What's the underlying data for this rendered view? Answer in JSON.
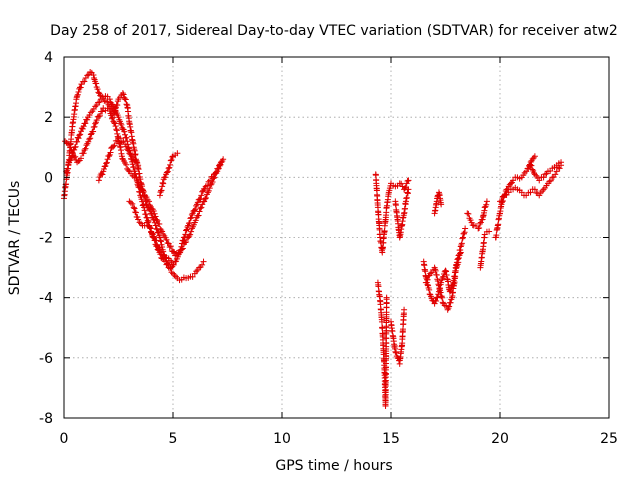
{
  "chart_data": {
    "type": "scatter",
    "title": "Day 258 of 2017, Sidereal Day-to-day VTEC variation (SDTVAR) for receiver atw2",
    "xlabel": "GPS time / hours",
    "ylabel": "SDTVAR / TECUs",
    "xlim": [
      0,
      25
    ],
    "ylim": [
      -8,
      4
    ],
    "xticks": [
      0,
      5,
      10,
      15,
      20,
      25
    ],
    "yticks": [
      4,
      2,
      0,
      -2,
      -4,
      -6,
      -8
    ],
    "xtick_labels": [
      "0",
      "5",
      "10",
      "15",
      "20",
      "25"
    ],
    "ytick_labels": [
      "4",
      "2",
      "0",
      "-2",
      "-4",
      "-6",
      "-8"
    ],
    "grid": true,
    "marker": "+",
    "color": "#e00000",
    "series": [
      {
        "name": "SDTVAR",
        "tracks": [
          {
            "x": [
              0.0,
              0.2,
              0.4,
              0.6,
              0.8,
              1.0,
              1.2,
              1.35,
              1.5,
              1.7,
              2.0,
              2.3,
              2.5,
              2.7,
              2.9,
              3.0,
              3.2,
              3.4,
              3.6,
              3.8,
              4.0,
              4.2,
              4.4,
              4.6,
              4.8,
              5.0,
              5.2,
              5.4,
              5.6,
              5.8,
              6.0,
              6.2,
              6.4
            ],
            "y": [
              -0.7,
              0.4,
              1.8,
              2.7,
              3.1,
              3.3,
              3.5,
              3.4,
              3.0,
              2.7,
              2.5,
              2.1,
              2.6,
              2.8,
              2.4,
              1.8,
              1.0,
              0.3,
              -0.4,
              -0.9,
              -1.2,
              -1.6,
              -2.0,
              -2.6,
              -3.0,
              -3.2,
              -3.35,
              -3.4,
              -3.35,
              -3.3,
              -3.2,
              -3.0,
              -2.8
            ]
          },
          {
            "x": [
              0.1,
              0.3,
              0.5,
              0.7,
              0.9,
              1.1,
              1.3,
              1.5,
              1.7,
              1.9,
              2.1,
              2.3,
              2.5,
              2.7,
              2.9,
              3.1,
              3.3,
              3.5,
              3.7,
              3.9,
              4.1,
              4.3,
              4.5,
              4.7,
              4.9,
              5.1,
              5.3,
              5.5,
              5.7,
              5.9,
              6.1,
              6.3,
              6.5,
              6.7,
              6.9,
              7.1,
              7.3
            ],
            "y": [
              0.2,
              0.6,
              1.0,
              1.4,
              1.7,
              2.0,
              2.2,
              2.4,
              2.6,
              2.7,
              2.6,
              2.3,
              2.0,
              1.6,
              1.2,
              0.6,
              0.0,
              -0.6,
              -1.1,
              -1.6,
              -2.0,
              -2.4,
              -2.7,
              -2.9,
              -3.0,
              -2.8,
              -2.5,
              -2.0,
              -1.6,
              -1.2,
              -0.9,
              -0.6,
              -0.3,
              -0.1,
              0.1,
              0.3,
              0.6
            ]
          },
          {
            "x": [
              0.05,
              0.3,
              0.6,
              0.9,
              1.2,
              1.5,
              1.8,
              2.1,
              2.4,
              2.7,
              3.0,
              3.3,
              3.6,
              3.9,
              4.2,
              4.5,
              4.8,
              5.1,
              5.4,
              5.7,
              6.0,
              6.3,
              6.6,
              6.9,
              7.2
            ],
            "y": [
              1.2,
              1.0,
              0.5,
              0.8,
              1.3,
              1.9,
              2.3,
              2.2,
              1.6,
              0.6,
              0.2,
              0.0,
              -0.5,
              -0.8,
              -1.3,
              -1.8,
              -2.2,
              -2.6,
              -2.4,
              -2.0,
              -1.5,
              -1.0,
              -0.5,
              0.0,
              0.5
            ]
          },
          {
            "x": [
              1.6,
              1.8,
              2.0,
              2.2,
              2.5,
              2.8,
              3.1,
              3.4
            ],
            "y": [
              -0.1,
              0.2,
              0.6,
              1.0,
              1.3,
              1.1,
              0.7,
              0.4
            ]
          },
          {
            "x": [
              3.0,
              3.2,
              3.4,
              3.6,
              3.8,
              4.0,
              4.2,
              4.4,
              4.6,
              4.8,
              5.0
            ],
            "y": [
              -0.8,
              -1.0,
              -1.4,
              -1.6,
              -1.5,
              -1.8,
              -2.1,
              -2.4,
              -2.6,
              -2.7,
              -2.9
            ]
          },
          {
            "x": [
              4.4,
              4.5,
              4.6,
              4.8,
              5.0,
              5.2
            ],
            "y": [
              -0.6,
              -0.3,
              0.0,
              0.3,
              0.7,
              0.8
            ]
          },
          {
            "x": [
              14.3,
              14.4,
              14.5,
              14.6,
              14.7,
              14.8,
              14.9,
              15.0,
              15.2,
              15.4,
              15.6,
              15.8
            ],
            "y": [
              0.1,
              -1.0,
              -2.0,
              -2.5,
              -1.8,
              -1.0,
              -0.5,
              -0.2,
              -0.3,
              -0.2,
              -0.4,
              -0.1
            ]
          },
          {
            "x": [
              14.4,
              14.45,
              14.5,
              14.55,
              14.6,
              14.65,
              14.7,
              14.75,
              14.8
            ],
            "y": [
              -3.5,
              -3.8,
              -4.1,
              -4.5,
              -5.0,
              -5.7,
              -6.4,
              -7.6,
              -4.0
            ]
          },
          {
            "x": [
              15.0,
              15.05,
              15.1,
              15.2,
              15.3,
              15.4,
              15.5,
              15.6
            ],
            "y": [
              -4.8,
              -5.1,
              -5.3,
              -5.8,
              -6.0,
              -6.2,
              -5.6,
              -4.4
            ]
          },
          {
            "x": [
              15.2,
              15.3,
              15.4,
              15.5,
              15.6,
              15.7,
              15.8
            ],
            "y": [
              -0.8,
              -1.4,
              -2.0,
              -1.6,
              -1.2,
              -0.7,
              -0.4
            ]
          },
          {
            "x": [
              16.5,
              16.6,
              16.7,
              16.8,
              16.9,
              17.0,
              17.1,
              17.2,
              17.3,
              17.4,
              17.5,
              17.6,
              17.7,
              17.8,
              17.9,
              18.0,
              18.1,
              18.2,
              18.3,
              18.4
            ],
            "y": [
              -2.8,
              -3.3,
              -3.6,
              -3.9,
              -4.1,
              -4.2,
              -4.0,
              -3.8,
              -3.5,
              -3.3,
              -3.1,
              -3.4,
              -3.8,
              -3.6,
              -3.3,
              -2.9,
              -2.6,
              -2.3,
              -2.0,
              -1.7
            ]
          },
          {
            "x": [
              16.6,
              16.8,
              17.0,
              17.2,
              17.4,
              17.6,
              17.8,
              18.0,
              18.2
            ],
            "y": [
              -3.5,
              -3.2,
              -3.0,
              -3.6,
              -4.2,
              -4.4,
              -4.0,
              -3.0,
              -2.5
            ]
          },
          {
            "x": [
              17.0,
              17.05,
              17.1,
              17.15,
              17.2,
              17.25,
              17.3
            ],
            "y": [
              -1.2,
              -1.0,
              -0.8,
              -0.6,
              -0.5,
              -0.7,
              -0.9
            ]
          },
          {
            "x": [
              18.5,
              18.8,
              19.0,
              19.2,
              19.3,
              19.4
            ],
            "y": [
              -1.2,
              -1.6,
              -1.7,
              -1.4,
              -1.0,
              -0.8
            ]
          },
          {
            "x": [
              19.1,
              19.3,
              19.5
            ],
            "y": [
              -3.0,
              -1.9,
              -1.8
            ]
          },
          {
            "x": [
              19.8,
              19.9,
              20.0,
              20.1,
              20.2,
              20.3,
              20.4,
              20.5,
              20.6,
              20.8,
              21.0,
              21.2,
              21.4,
              21.6,
              21.8,
              22.0,
              22.2,
              22.4,
              22.6,
              22.8
            ],
            "y": [
              -2.0,
              -1.6,
              -1.2,
              -0.8,
              -0.6,
              -0.4,
              -0.3,
              -0.2,
              -0.1,
              0.0,
              0.0,
              0.2,
              0.4,
              0.1,
              -0.1,
              0.0,
              0.2,
              0.3,
              0.4,
              0.5
            ]
          },
          {
            "x": [
              20.0,
              20.2,
              20.4,
              20.6,
              20.8,
              21.0,
              21.2,
              21.4,
              21.6,
              21.8,
              22.0,
              22.2,
              22.4,
              22.6,
              22.8
            ],
            "y": [
              -0.8,
              -0.6,
              -0.5,
              -0.4,
              -0.4,
              -0.5,
              -0.6,
              -0.5,
              -0.4,
              -0.6,
              -0.4,
              -0.2,
              0.0,
              0.2,
              0.4
            ]
          },
          {
            "x": [
              21.3,
              21.45,
              21.6
            ],
            "y": [
              0.3,
              0.55,
              0.7
            ]
          }
        ]
      }
    ]
  }
}
